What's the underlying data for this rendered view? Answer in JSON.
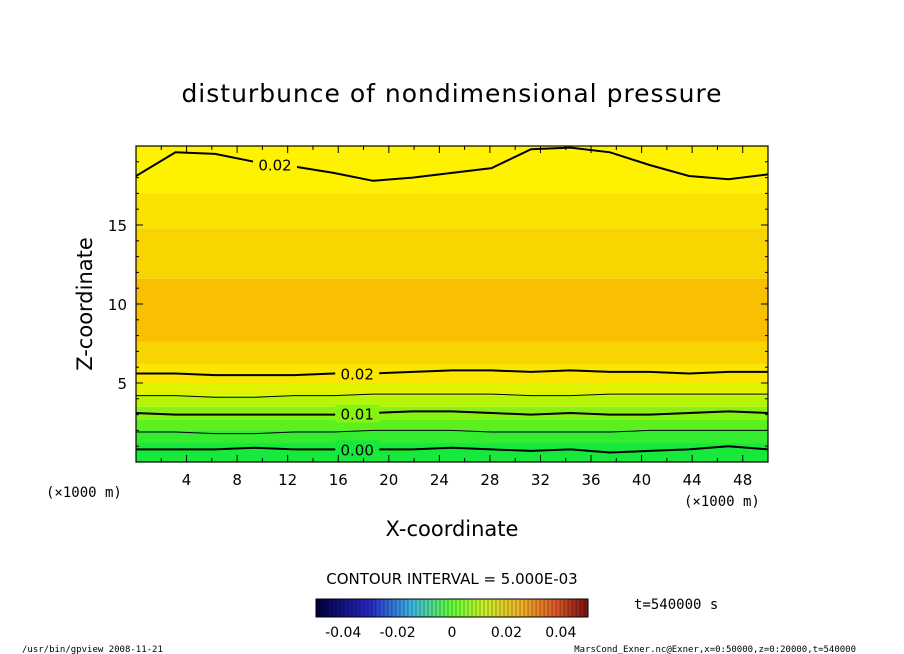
{
  "chart_data": {
    "type": "contour",
    "title": "disturbunce of nondimensional pressure",
    "xlabel": "X-coordinate",
    "ylabel": "Z-coordinate",
    "x_unit": "(×1000 m)",
    "y_unit": "(×1000 m)",
    "xlim": [
      0,
      50
    ],
    "ylim": [
      0,
      20
    ],
    "x_ticks": [
      "4",
      "8",
      "12",
      "16",
      "20",
      "24",
      "28",
      "32",
      "36",
      "40",
      "44",
      "48"
    ],
    "y_ticks": [
      "5",
      "10",
      "15"
    ],
    "contour_interval_text": "CONTOUR INTERVAL = 5.000E-03",
    "time_text": "t=540000 s",
    "colorbar": {
      "range": [
        -0.05,
        0.05
      ],
      "tick_labels": [
        "-0.04",
        "-0.02",
        "0",
        "0.02",
        "0.04"
      ],
      "tick_values": [
        -0.04,
        -0.02,
        0,
        0.02,
        0.04
      ],
      "low_color": "#000060",
      "mid_color": "#66ff33",
      "high_color": "#7a1010"
    },
    "fill_bands": [
      {
        "z_from": 0.0,
        "z_to": 1.2,
        "color": "#16e83c"
      },
      {
        "z_from": 1.2,
        "z_to": 2.0,
        "color": "#33ec2f"
      },
      {
        "z_from": 2.0,
        "z_to": 2.7,
        "color": "#5cf020"
      },
      {
        "z_from": 2.7,
        "z_to": 3.5,
        "color": "#86f312"
      },
      {
        "z_from": 3.5,
        "z_to": 4.2,
        "color": "#b6f506"
      },
      {
        "z_from": 4.2,
        "z_to": 5.0,
        "color": "#dff200"
      },
      {
        "z_from": 5.0,
        "z_to": 6.2,
        "color": "#fbe600"
      },
      {
        "z_from": 6.2,
        "z_to": 7.6,
        "color": "#f8d400"
      },
      {
        "z_from": 7.6,
        "z_to": 11.6,
        "color": "#f8c000"
      },
      {
        "z_from": 11.6,
        "z_to": 14.8,
        "color": "#f8d400"
      },
      {
        "z_from": 14.8,
        "z_to": 17.0,
        "color": "#fae300"
      },
      {
        "z_from": 17.0,
        "z_to": 20.0,
        "color": "#fef200"
      }
    ],
    "contours": [
      {
        "label": "0.02",
        "bold": true,
        "label_x": 11.0,
        "z": [
          18.1,
          19.6,
          19.5,
          19.0,
          18.7,
          18.3,
          17.8,
          18.0,
          18.3,
          18.6,
          19.8,
          19.9,
          19.6,
          18.8,
          18.1,
          17.9,
          18.2
        ]
      },
      {
        "label": "0.02",
        "bold": true,
        "label_x": 17.5,
        "z": [
          5.6,
          5.6,
          5.5,
          5.5,
          5.5,
          5.6,
          5.6,
          5.7,
          5.8,
          5.8,
          5.7,
          5.8,
          5.7,
          5.7,
          5.6,
          5.7,
          5.7
        ]
      },
      {
        "label": "",
        "bold": false,
        "label_x": null,
        "z": [
          4.2,
          4.2,
          4.1,
          4.1,
          4.2,
          4.2,
          4.3,
          4.3,
          4.3,
          4.3,
          4.2,
          4.2,
          4.3,
          4.3,
          4.3,
          4.3,
          4.3
        ]
      },
      {
        "label": "0.01",
        "bold": true,
        "label_x": 17.5,
        "z": [
          3.1,
          3.0,
          3.0,
          3.0,
          3.0,
          3.0,
          3.1,
          3.2,
          3.2,
          3.1,
          3.0,
          3.1,
          3.0,
          3.0,
          3.1,
          3.2,
          3.1
        ]
      },
      {
        "label": "",
        "bold": false,
        "label_x": null,
        "z": [
          1.9,
          1.9,
          1.8,
          1.8,
          1.9,
          1.9,
          2.0,
          2.0,
          2.0,
          1.9,
          1.9,
          1.9,
          1.9,
          2.0,
          2.0,
          2.0,
          2.0
        ]
      },
      {
        "label": "0.00",
        "bold": true,
        "label_x": 17.5,
        "z": [
          0.8,
          0.8,
          0.8,
          0.9,
          0.8,
          0.8,
          0.8,
          0.8,
          0.9,
          0.8,
          0.7,
          0.8,
          0.6,
          0.7,
          0.8,
          1.0,
          0.8
        ]
      }
    ]
  },
  "footer": {
    "left": "/usr/bin/gpview   2008-11-21",
    "right": "MarsCond_Exner.nc@Exner,x=0:50000,z=0:20000,t=540000"
  }
}
